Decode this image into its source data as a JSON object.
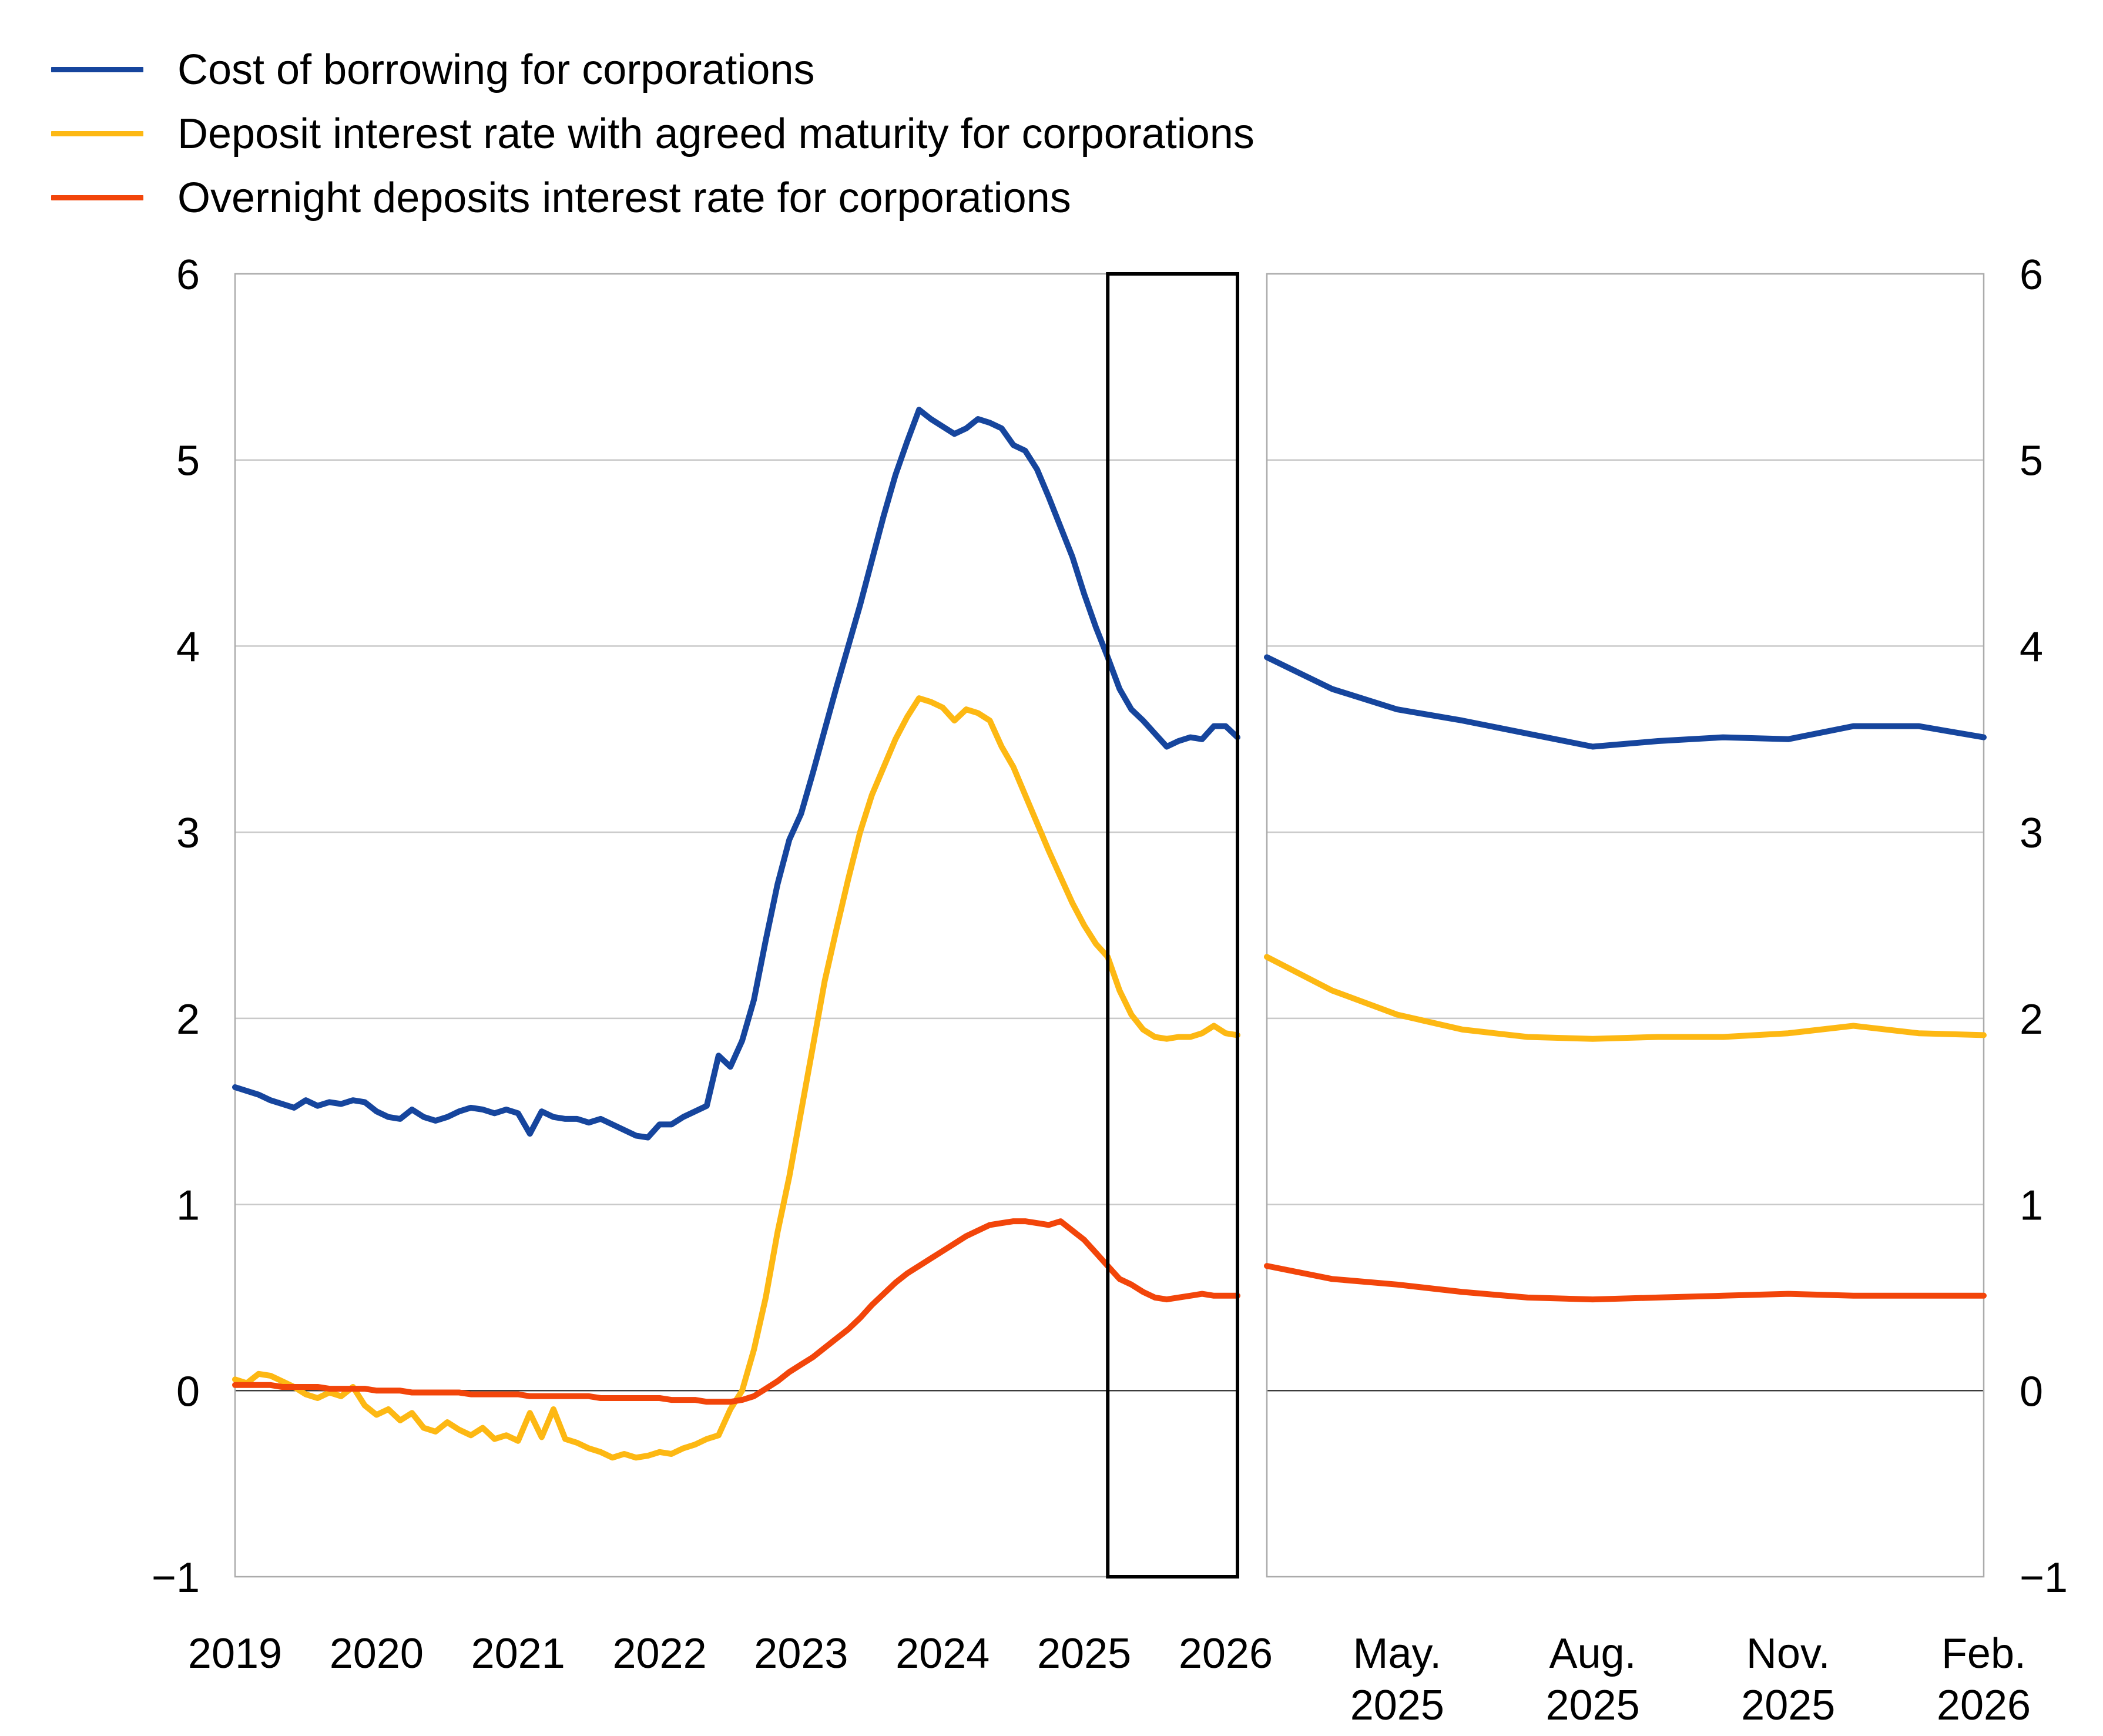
{
  "legend": {
    "items": [
      {
        "label": "Cost of borrowing for corporations",
        "color": "#16459D"
      },
      {
        "label": "Deposit interest rate with agreed maturity for corporations",
        "color": "#FDB813"
      },
      {
        "label": "Overnight deposits interest rate for corporations",
        "color": "#F2450A"
      }
    ]
  },
  "chart_data": {
    "type": "line",
    "unit": "percent",
    "x_start": "2019-01",
    "x_end": "2026-02",
    "x_frequency": "monthly",
    "ylim": [
      -1,
      6
    ],
    "y_ticks": [
      "6",
      "5",
      "4",
      "3",
      "2",
      "1",
      "0",
      "−1"
    ],
    "y_tick_values": [
      6,
      5,
      4,
      3,
      2,
      1,
      0,
      -1
    ],
    "grid": "horizontal",
    "zero_line": true,
    "left_panel": {
      "x_tick_labels": [
        "2019",
        "2020",
        "2021",
        "2022",
        "2023",
        "2024",
        "2025",
        "2026"
      ],
      "x_tick_month_index": [
        0,
        12,
        24,
        36,
        48,
        60,
        72,
        84
      ]
    },
    "highlight_box": {
      "from": "2025-03",
      "to": "2026-02",
      "start_index": 74,
      "color": "#000000"
    },
    "right_panel": {
      "description": "zoom of boxed period Mar 2025 - Feb 2026",
      "start_index": 74,
      "n_points": 12,
      "x_tick_labels": [
        [
          "May.",
          "2025"
        ],
        [
          "Aug.",
          "2025"
        ],
        [
          "Nov.",
          "2025"
        ],
        [
          "Feb.",
          "2026"
        ]
      ],
      "x_tick_point_index": [
        2,
        5,
        8,
        11
      ]
    },
    "series": [
      {
        "name": "Cost of borrowing for corporations",
        "color": "#16459D",
        "values": [
          1.63,
          1.61,
          1.59,
          1.56,
          1.54,
          1.52,
          1.56,
          1.53,
          1.55,
          1.54,
          1.56,
          1.55,
          1.5,
          1.47,
          1.46,
          1.51,
          1.47,
          1.45,
          1.47,
          1.5,
          1.52,
          1.51,
          1.49,
          1.51,
          1.49,
          1.38,
          1.5,
          1.47,
          1.46,
          1.46,
          1.44,
          1.46,
          1.43,
          1.4,
          1.37,
          1.36,
          1.43,
          1.43,
          1.47,
          1.5,
          1.53,
          1.8,
          1.74,
          1.88,
          2.1,
          2.42,
          2.72,
          2.96,
          3.1,
          3.32,
          3.55,
          3.78,
          4.0,
          4.22,
          4.46,
          4.7,
          4.92,
          5.1,
          5.27,
          5.22,
          5.18,
          5.14,
          5.17,
          5.22,
          5.2,
          5.17,
          5.08,
          5.05,
          4.95,
          4.8,
          4.64,
          4.48,
          4.28,
          4.1,
          3.94,
          3.77,
          3.66,
          3.6,
          3.53,
          3.46,
          3.49,
          3.51,
          3.5,
          3.57,
          3.57,
          3.51
        ]
      },
      {
        "name": "Deposit interest rate with agreed maturity for corporations",
        "color": "#FDB813",
        "values": [
          0.06,
          0.04,
          0.09,
          0.08,
          0.05,
          0.02,
          -0.02,
          -0.04,
          -0.01,
          -0.03,
          0.02,
          -0.08,
          -0.13,
          -0.1,
          -0.16,
          -0.12,
          -0.2,
          -0.22,
          -0.17,
          -0.21,
          -0.24,
          -0.2,
          -0.26,
          -0.24,
          -0.27,
          -0.12,
          -0.25,
          -0.1,
          -0.26,
          -0.28,
          -0.31,
          -0.33,
          -0.36,
          -0.34,
          -0.36,
          -0.35,
          -0.33,
          -0.34,
          -0.31,
          -0.29,
          -0.26,
          -0.24,
          -0.1,
          0.0,
          0.22,
          0.5,
          0.85,
          1.15,
          1.5,
          1.85,
          2.2,
          2.48,
          2.75,
          3.0,
          3.2,
          3.35,
          3.5,
          3.62,
          3.72,
          3.7,
          3.67,
          3.6,
          3.66,
          3.64,
          3.6,
          3.46,
          3.35,
          3.2,
          3.05,
          2.9,
          2.76,
          2.62,
          2.5,
          2.4,
          2.33,
          2.15,
          2.02,
          1.94,
          1.9,
          1.89,
          1.9,
          1.9,
          1.92,
          1.96,
          1.92,
          1.91
        ]
      },
      {
        "name": "Overnight deposits interest rate for corporations",
        "color": "#F2450A",
        "values": [
          0.03,
          0.03,
          0.03,
          0.03,
          0.02,
          0.02,
          0.02,
          0.02,
          0.01,
          0.01,
          0.01,
          0.01,
          0.0,
          0.0,
          0.0,
          -0.01,
          -0.01,
          -0.01,
          -0.01,
          -0.01,
          -0.02,
          -0.02,
          -0.02,
          -0.02,
          -0.02,
          -0.03,
          -0.03,
          -0.03,
          -0.03,
          -0.03,
          -0.03,
          -0.04,
          -0.04,
          -0.04,
          -0.04,
          -0.04,
          -0.04,
          -0.05,
          -0.05,
          -0.05,
          -0.06,
          -0.06,
          -0.06,
          -0.05,
          -0.03,
          0.01,
          0.05,
          0.1,
          0.14,
          0.18,
          0.23,
          0.28,
          0.33,
          0.39,
          0.46,
          0.52,
          0.58,
          0.63,
          0.67,
          0.71,
          0.75,
          0.79,
          0.83,
          0.86,
          0.89,
          0.9,
          0.91,
          0.91,
          0.9,
          0.89,
          0.91,
          0.86,
          0.81,
          0.74,
          0.67,
          0.6,
          0.57,
          0.53,
          0.5,
          0.49,
          0.5,
          0.51,
          0.52,
          0.51,
          0.51,
          0.51
        ]
      }
    ],
    "style": {
      "grid_color": "#C9C9C9",
      "frame_color": "#ABABAB",
      "zero_line_color": "#3C3C3C",
      "line_width": 10
    }
  }
}
